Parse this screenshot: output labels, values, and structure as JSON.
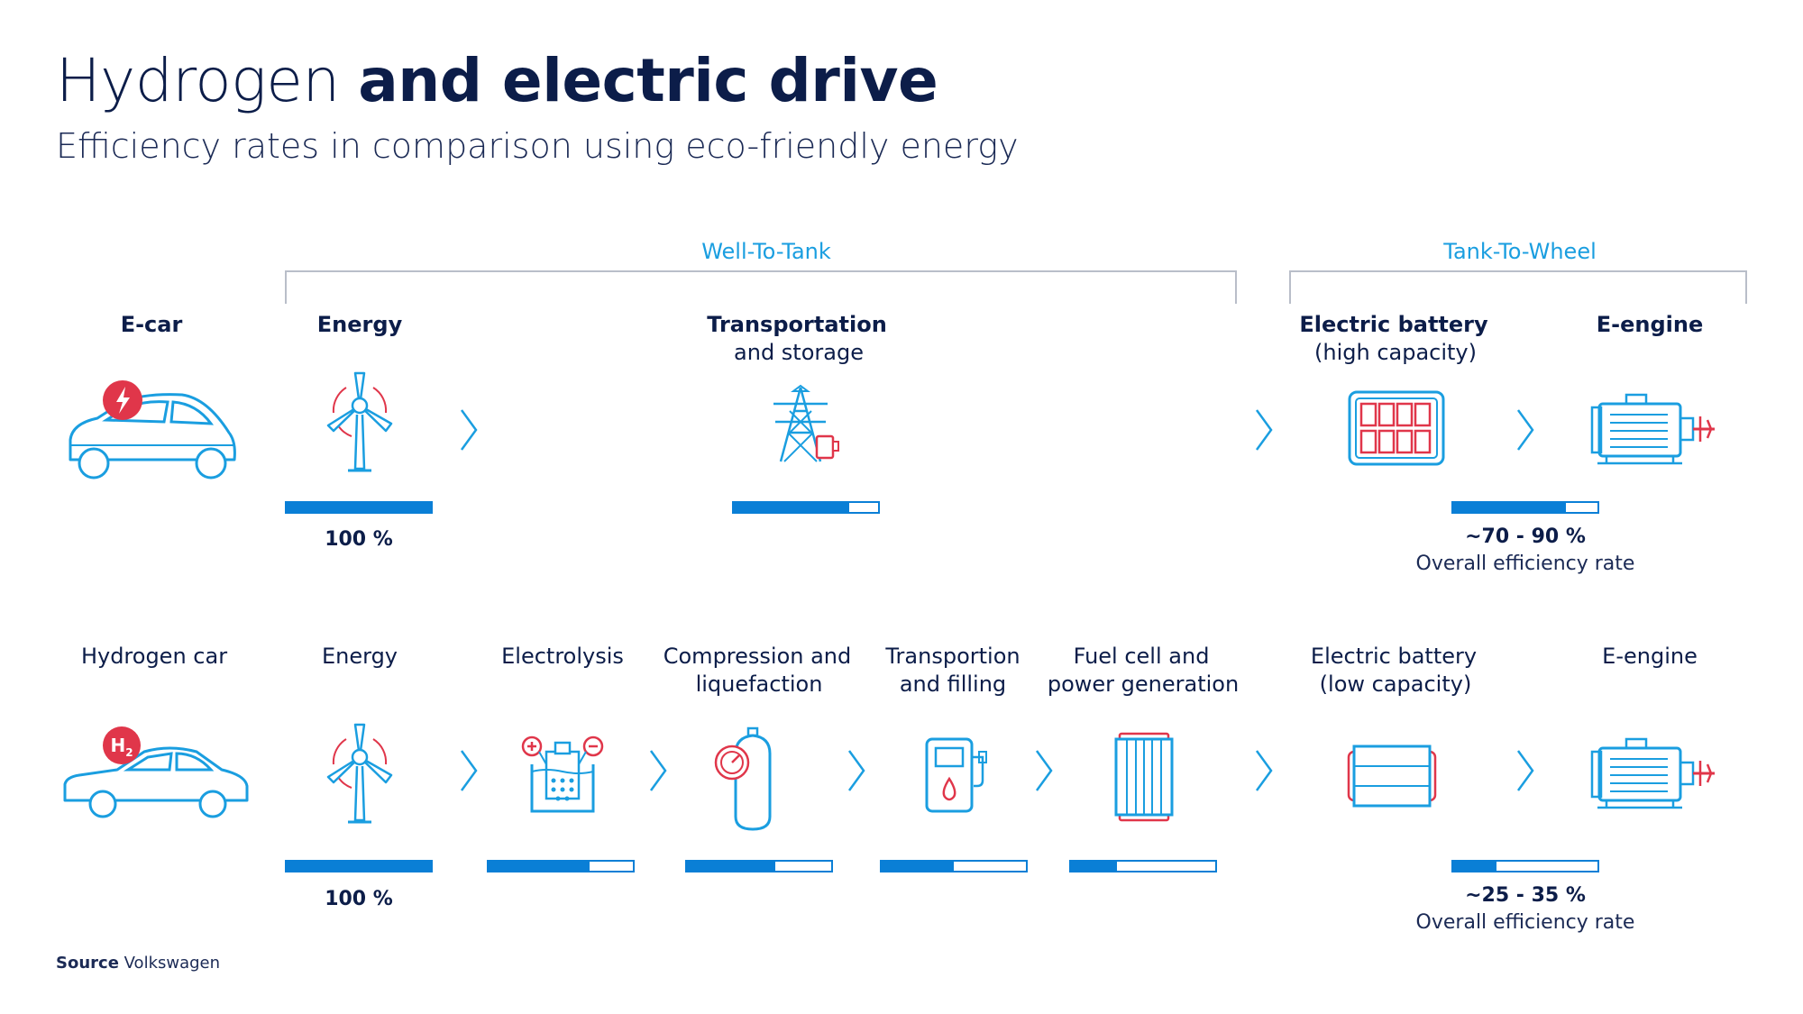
{
  "title": {
    "light": "Hydrogen",
    "bold": "and electric drive"
  },
  "subtitle": "Efficiency rates in comparison using eco-friendly energy",
  "phases": {
    "well_to_tank": "Well-To-Tank",
    "tank_to_wheel": "Tank-To-Wheel"
  },
  "ecar": {
    "label": "E-car",
    "steps": [
      {
        "name": "Energy",
        "efficiency": 1.0,
        "value_text": "100 %"
      },
      {
        "name": "Transportation",
        "sub": "and storage",
        "efficiency": 0.8
      },
      {
        "name": "Electric battery",
        "sub": "(high capacity)"
      },
      {
        "name": "E-engine",
        "efficiency": 0.78,
        "value_text": "~70 - 90 %",
        "note": "Overall efficiency rate"
      }
    ]
  },
  "hcar": {
    "label": "Hydrogen car",
    "badge": "H",
    "badge_sub": "2",
    "steps": [
      {
        "name": "Energy",
        "efficiency": 1.0,
        "value_text": "100 %"
      },
      {
        "name": "Electrolysis",
        "efficiency": 0.7
      },
      {
        "name": "Compression and",
        "sub": "liquefaction",
        "efficiency": 0.61
      },
      {
        "name": "Transportion",
        "sub": "and filling",
        "efficiency": 0.5
      },
      {
        "name": "Fuel cell and",
        "sub": "power generation",
        "efficiency": 0.32
      },
      {
        "name": "Electric battery",
        "sub": "(low capacity)"
      },
      {
        "name": "E-engine",
        "efficiency": 0.3,
        "value_text": "~25 - 35 %",
        "note": "Overall efficiency rate"
      }
    ]
  },
  "source": {
    "label": "Source",
    "value": "Volkswagen"
  },
  "colors": {
    "navy": "#0c1d49",
    "blue": "#0a7fd6",
    "cyan": "#1a9ee0",
    "red": "#e0364a",
    "bracket": "#b9bec9"
  },
  "icons": [
    "car-icon",
    "lightning-icon",
    "hydrogen-badge-icon",
    "wind-turbine-icon",
    "power-pylon-icon",
    "battery-icon",
    "electric-motor-icon",
    "electrolysis-icon",
    "gas-tank-icon",
    "fuel-pump-icon",
    "fuel-cell-icon",
    "chevron-right-icon"
  ]
}
